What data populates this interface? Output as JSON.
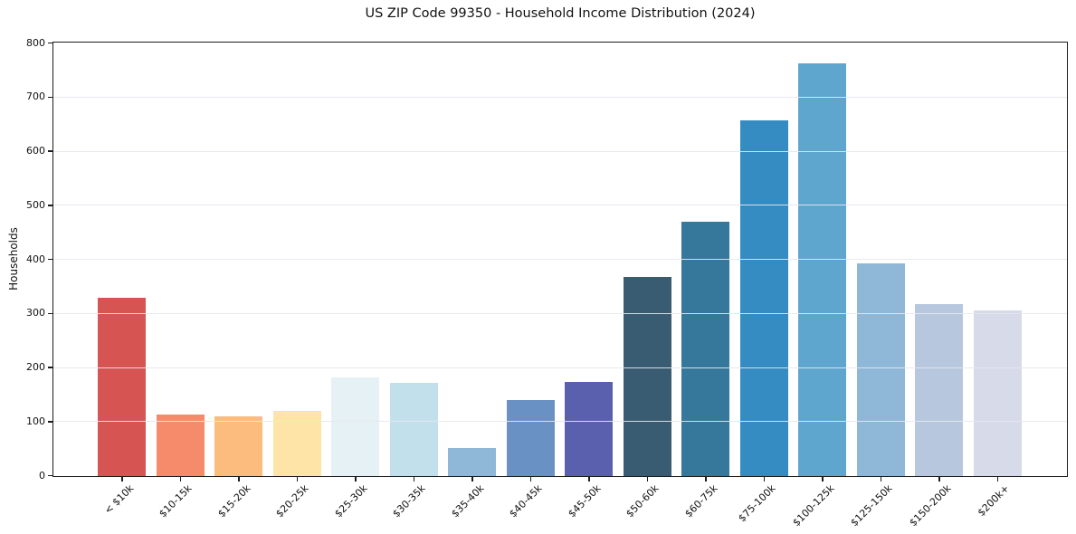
{
  "chart_data": {
    "type": "bar",
    "title": "US ZIP Code 99350 - Household Income Distribution (2024)",
    "xlabel": "",
    "ylabel": "Households",
    "ylim": [
      0,
      800
    ],
    "yticks": [
      0,
      100,
      200,
      300,
      400,
      500,
      600,
      700,
      800
    ],
    "grid": "horizontal-light-gridlines-drawn-over-bars",
    "legend": "none",
    "categories": [
      "< $10k",
      "$10-15k",
      "$15-20k",
      "$20-25k",
      "$25-30k",
      "$30-35k",
      "$35-40k",
      "$40-45k",
      "$45-50k",
      "$50-60k",
      "$60-75k",
      "$75-100k",
      "$100-125k",
      "$125-150k",
      "$150-200k",
      "$200k+"
    ],
    "values": [
      330,
      114,
      110,
      121,
      183,
      172,
      52,
      141,
      174,
      368,
      470,
      657,
      763,
      393,
      318,
      307
    ],
    "bar_colors": [
      "#d65553",
      "#f58b6a",
      "#fcbc7e",
      "#fee5a7",
      "#e5f1f5",
      "#c2e0ec",
      "#8fb8d8",
      "#6991c3",
      "#5a5fae",
      "#3a5c73",
      "#36789b",
      "#348cc3",
      "#5fa6cf",
      "#8fb7d8",
      "#b7c8de",
      "#d7dae8"
    ]
  },
  "styles": {
    "background": "#ffffff",
    "axis_color": "#1c1c1c",
    "grid_color": "#e7e7f0",
    "text_color": "#111111"
  }
}
